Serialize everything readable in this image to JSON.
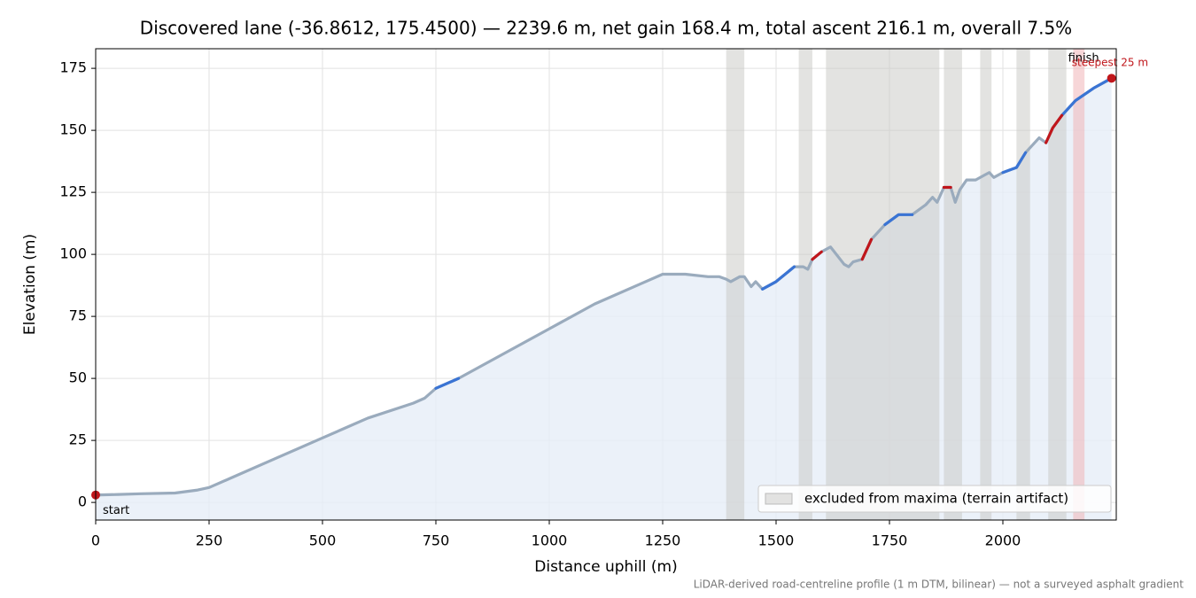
{
  "chart_data": {
    "type": "line",
    "title": "Discovered lane (-36.8612, 175.4500) — 2239.6 m, net gain 168.4 m, total ascent 216.1 m, overall 7.5%",
    "xlabel": "Distance uphill (m)",
    "ylabel": "Elevation (m)",
    "footnote": "LiDAR-derived road-centreline profile (1 m DTM, bilinear) — not a surveyed asphalt gradient",
    "x": [
      0,
      50,
      100,
      175,
      225,
      250,
      300,
      400,
      500,
      550,
      600,
      700,
      725,
      750,
      800,
      900,
      1000,
      1100,
      1200,
      1250,
      1300,
      1350,
      1375,
      1390,
      1400,
      1420,
      1430,
      1445,
      1455,
      1470,
      1500,
      1540,
      1560,
      1570,
      1580,
      1600,
      1620,
      1650,
      1660,
      1670,
      1690,
      1710,
      1740,
      1770,
      1800,
      1830,
      1845,
      1855,
      1870,
      1885,
      1895,
      1905,
      1920,
      1940,
      1960,
      1970,
      1980,
      2000,
      2030,
      2050,
      2080,
      2095,
      2110,
      2130,
      2160,
      2200,
      2239.6
    ],
    "series": [
      {
        "color": "#9aabbd",
        "values": [
          3,
          3.2,
          3.5,
          3.8,
          5,
          6,
          10,
          18,
          26,
          30,
          34,
          40,
          42,
          46,
          50,
          60,
          70,
          80,
          88,
          92,
          92,
          91,
          91,
          90,
          89,
          91,
          91,
          87,
          89,
          86,
          89,
          95,
          95,
          94,
          98,
          101,
          103,
          96,
          95,
          97,
          98,
          106,
          112,
          116,
          116,
          120,
          123,
          121,
          127,
          127,
          121,
          126,
          130,
          130,
          132,
          133,
          131,
          133,
          135,
          141,
          147,
          145,
          151,
          156,
          162,
          167,
          171
        ]
      },
      {
        "color": "#3a74d4",
        "values": [
          null,
          null,
          null,
          null,
          null,
          null,
          null,
          null,
          null,
          null,
          null,
          null,
          null,
          46,
          50,
          null,
          null,
          null,
          null,
          null,
          null,
          null,
          null,
          null,
          null,
          null,
          null,
          null,
          null,
          86,
          89,
          95,
          null,
          null,
          null,
          null,
          null,
          null,
          null,
          null,
          null,
          null,
          112,
          116,
          116,
          null,
          null,
          null,
          null,
          null,
          null,
          null,
          null,
          null,
          null,
          null,
          null,
          133,
          135,
          141,
          null,
          null,
          null,
          156,
          162,
          167,
          171
        ]
      },
      {
        "color": "#c0161b",
        "values": [
          null,
          null,
          null,
          null,
          null,
          null,
          null,
          null,
          null,
          null,
          null,
          null,
          null,
          null,
          null,
          null,
          null,
          null,
          null,
          null,
          null,
          null,
          null,
          null,
          null,
          null,
          null,
          null,
          null,
          null,
          null,
          null,
          null,
          null,
          98,
          101,
          null,
          null,
          null,
          null,
          98,
          106,
          null,
          null,
          null,
          null,
          null,
          null,
          127,
          127,
          null,
          null,
          null,
          null,
          null,
          null,
          null,
          null,
          null,
          null,
          null,
          145,
          151,
          156,
          null,
          null,
          null
        ]
      }
    ],
    "fill_color": "#e6edf8",
    "endpoint_color": "#c0161b",
    "start_label": "start",
    "finish_label": "finish",
    "bands": {
      "label": "excluded from maxima (terrain artifact)",
      "color": "#c8c8c4",
      "ranges": [
        [
          1390,
          1430
        ],
        [
          1550,
          1580
        ],
        [
          1610,
          1860
        ],
        [
          1870,
          1910
        ],
        [
          1950,
          1975
        ],
        [
          2030,
          2060
        ],
        [
          2100,
          2140
        ]
      ]
    },
    "highlight": {
      "label": "steepest 25 m",
      "color": "#f0b4b8",
      "range": [
        2155,
        2180
      ]
    },
    "legend_loc": "lower right",
    "xlim": [
      0,
      2250
    ],
    "ylim": [
      -7.1,
      182.9
    ],
    "xticks": [
      0,
      250,
      500,
      750,
      1000,
      1250,
      1500,
      1750,
      2000
    ],
    "yticks": [
      0,
      25,
      50,
      75,
      100,
      125,
      150,
      175
    ],
    "grid": true
  }
}
